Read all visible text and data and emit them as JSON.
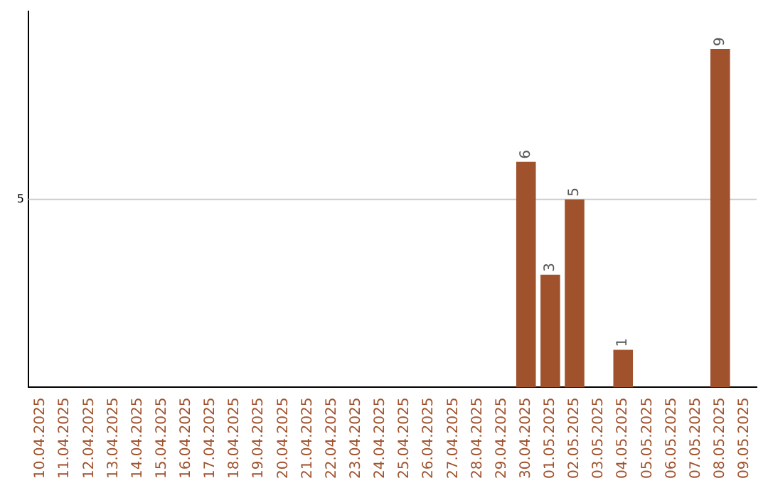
{
  "chart_data": {
    "type": "bar",
    "categories": [
      "10.04.2025",
      "11.04.2025",
      "12.04.2025",
      "13.04.2025",
      "14.04.2025",
      "15.04.2025",
      "16.04.2025",
      "17.04.2025",
      "18.04.2025",
      "19.04.2025",
      "20.04.2025",
      "21.04.2025",
      "22.04.2025",
      "23.04.2025",
      "24.04.2025",
      "25.04.2025",
      "26.04.2025",
      "27.04.2025",
      "28.04.2025",
      "29.04.2025",
      "30.04.2025",
      "01.05.2025",
      "02.05.2025",
      "03.05.2025",
      "04.05.2025",
      "05.05.2025",
      "06.05.2025",
      "07.05.2025",
      "08.05.2025",
      "09.05.2025"
    ],
    "values": [
      null,
      null,
      null,
      null,
      null,
      null,
      null,
      null,
      null,
      null,
      null,
      null,
      null,
      null,
      null,
      null,
      null,
      null,
      null,
      null,
      6,
      3,
      5,
      null,
      1,
      null,
      null,
      null,
      9,
      null
    ],
    "data_labels": true,
    "color": "#a0522d",
    "ref_lines": [
      {
        "axis": "y",
        "value": 5,
        "label": "5",
        "color": "#cccccc"
      }
    ]
  }
}
